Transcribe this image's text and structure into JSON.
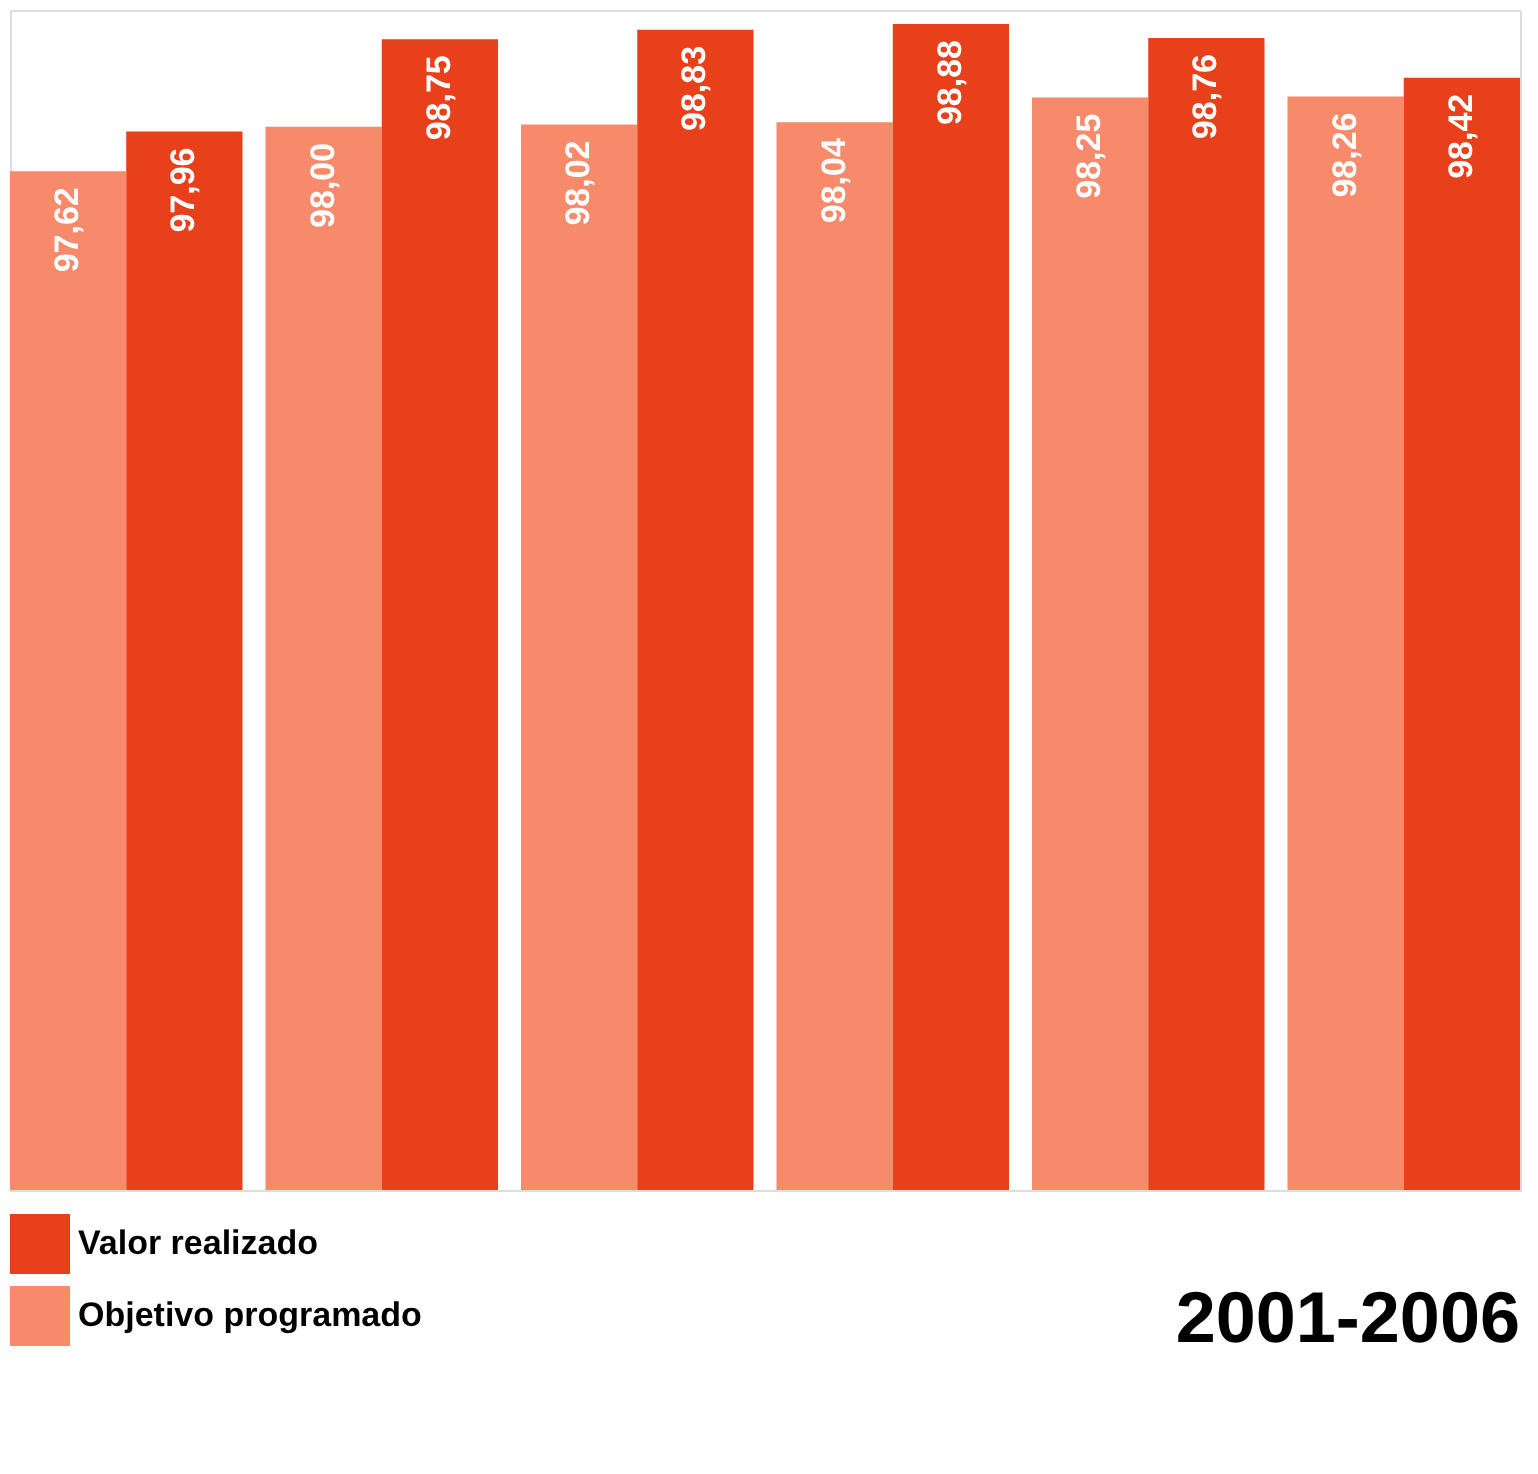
{
  "chart_data": {
    "type": "bar",
    "title": "2001-2006",
    "categories": [
      null,
      null,
      null,
      null,
      null,
      null
    ],
    "ylim": [
      88.9,
      99
    ],
    "legend": "bottom left",
    "grid": false,
    "tick_labels": false,
    "series": [
      {
        "name": "Objetivo programado",
        "color": "#f68a6a",
        "values": [
          97.62,
          98.0,
          98.02,
          98.04,
          98.25,
          98.26
        ],
        "value_labels": [
          "97,62",
          "98,00",
          "98,02",
          "98,04",
          "98,25",
          "98,26"
        ]
      },
      {
        "name": "Valor realizado",
        "color": "#e8401a",
        "values": [
          97.96,
          98.75,
          98.83,
          98.88,
          98.76,
          98.42
        ],
        "value_labels": [
          "97,96",
          "98,75",
          "98,83",
          "98,88",
          "98,76",
          "98,42"
        ]
      }
    ]
  }
}
